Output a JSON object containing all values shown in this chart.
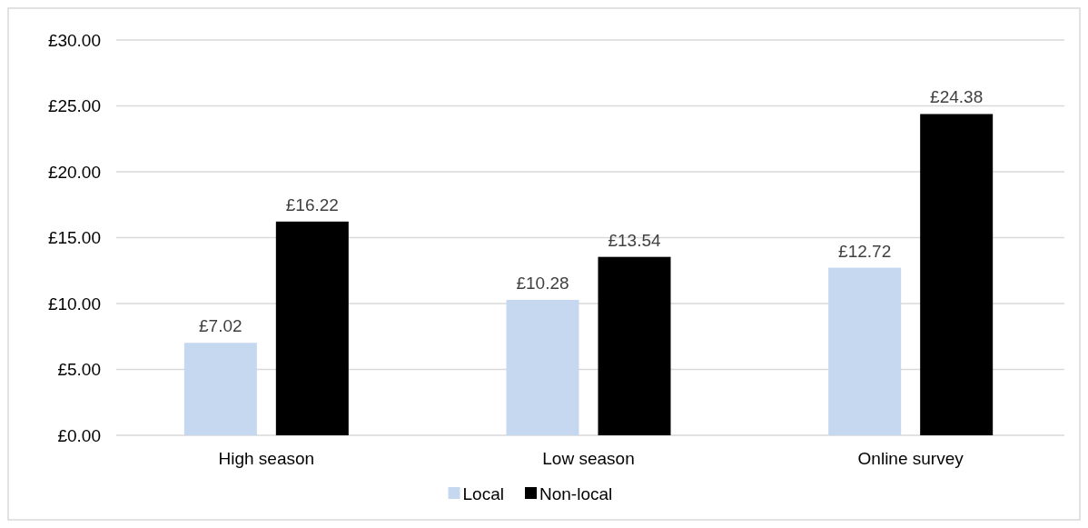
{
  "chart_data": {
    "type": "bar",
    "categories": [
      "High season",
      "Low season",
      "Online survey"
    ],
    "series": [
      {
        "name": "Local",
        "color": "#c5d8f0",
        "values": [
          7.02,
          10.28,
          12.72
        ]
      },
      {
        "name": "Non-local",
        "color": "#000000",
        "values": [
          16.22,
          13.54,
          24.38
        ]
      }
    ],
    "value_labels": [
      [
        "£7.02",
        "£10.28",
        "£12.72"
      ],
      [
        "£16.22",
        "£13.54",
        "£24.38"
      ]
    ],
    "ylim": [
      0,
      30
    ],
    "yticks": [
      {
        "value": 0,
        "label": "£0.00"
      },
      {
        "value": 5,
        "label": "£5.00"
      },
      {
        "value": 10,
        "label": "£10.00"
      },
      {
        "value": 15,
        "label": "£15.00"
      },
      {
        "value": 20,
        "label": "£20.00"
      },
      {
        "value": 25,
        "label": "£25.00"
      },
      {
        "value": 30,
        "label": "£30.00"
      }
    ],
    "grid": "y",
    "legend": "bottom"
  }
}
